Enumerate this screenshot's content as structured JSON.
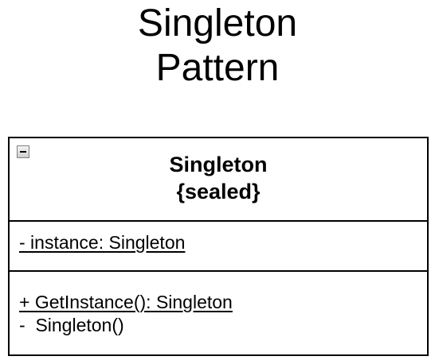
{
  "title": {
    "line1": "Singleton",
    "line2": "Pattern"
  },
  "uml_class": {
    "name": "Singleton",
    "stereotype": "{sealed}",
    "collapse_icon": "minus-square-icon",
    "attributes": [
      "- instance: Singleton"
    ],
    "operations": [
      "+ GetInstance(): Singleton",
      "-  Singleton()"
    ]
  },
  "colors": {
    "line": "#000000",
    "background": "#ffffff",
    "toggle_border": "#808080"
  }
}
